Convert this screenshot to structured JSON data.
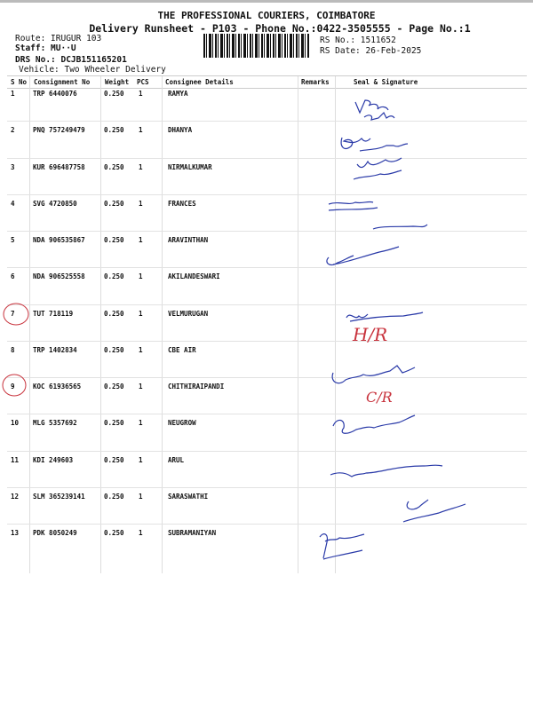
{
  "header": {
    "company": "THE PROFESSIONAL COURIERS, COIMBATORE",
    "subtitle": "Delivery Runsheet - P103 - Phone No.:0422-3505555 - Page No.:1",
    "route": "Route: IRUGUR 103",
    "staff": "Staff: MU··U",
    "drs_no": "DRS No.: DCJB151165201",
    "vehicle": "Vehicle: Two Wheeler Delivery",
    "rs_no": "RS No.: 1511652",
    "rs_date": "RS Date: 26-Feb-2025"
  },
  "columns": [
    "S No",
    "Consignment No",
    "Weight",
    "PCS",
    "Consignee Details",
    "Remarks",
    "Seal & Signature"
  ],
  "rows": [
    [
      "1",
      "TRP 6440076",
      "0.250",
      "1",
      "RAMYA"
    ],
    [
      "2",
      "PNQ 757249479",
      "0.250",
      "1",
      "DHANYA"
    ],
    [
      "3",
      "KUR 696487758",
      "0.250",
      "1",
      "NIRMALKUMAR"
    ],
    [
      "4",
      "SVG 4720850",
      "0.250",
      "1",
      "FRANCES"
    ],
    [
      "5",
      "NDA 906535867",
      "0.250",
      "1",
      "ARAVINTHAN"
    ],
    [
      "6",
      "NDA 906525558",
      "0.250",
      "1",
      "AKILANDESWARI"
    ],
    [
      "7",
      "TUT 718119",
      "0.250",
      "1",
      "VELMURUGAN"
    ],
    [
      "8",
      "TRP 1402834",
      "0.250",
      "1",
      "CBE AIR"
    ],
    [
      "9",
      "KOC 61936565",
      "0.250",
      "1",
      "CHITHIRAIPANDI"
    ],
    [
      "10",
      "MLG 5357692",
      "0.250",
      "1",
      "NEUGROW"
    ],
    [
      "11",
      "KDI 249603",
      "0.250",
      "1",
      "ARUL"
    ],
    [
      "12",
      "SLM 365239141",
      "0.250",
      "1",
      "SARASWATHI"
    ],
    [
      "13",
      "PDK 8050249",
      "0.250",
      "1",
      "SUBRAMANIYAN"
    ]
  ],
  "annotations": {
    "row7": "H/R",
    "row9": "C/R"
  },
  "colors": {
    "ink_blue": "#2a3aa8",
    "ink_red": "#c8323c"
  }
}
